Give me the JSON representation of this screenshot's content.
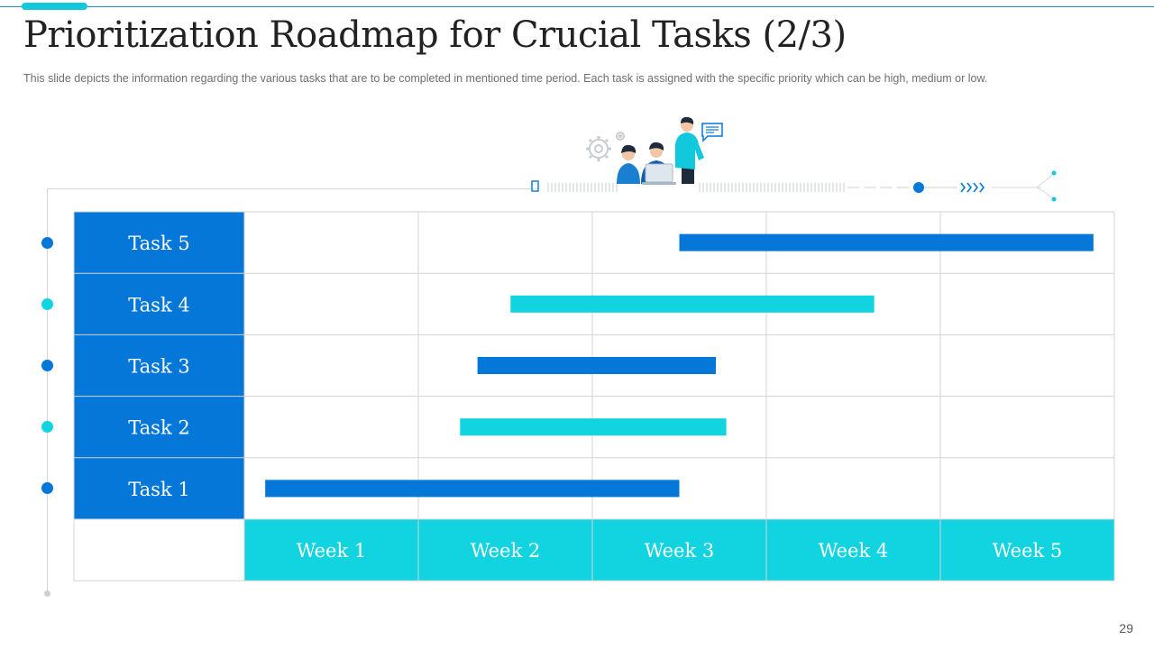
{
  "slide": {
    "title": "Prioritization Roadmap for Crucial Tasks (2/3)",
    "subtitle": "This slide depicts the information  regarding the various  tasks that are to be completed in mentioned time period. Each task is assigned with the specific priority which can be high,  medium or low.",
    "page_number": "29"
  },
  "colors": {
    "task_label_bg": "#0477d8",
    "week_label_bg": "#12d4e0",
    "bar_blue": "#0477d8",
    "bar_cyan": "#12d4e0",
    "grid": "#d3d3d3",
    "text_on_color": "#ffffff"
  },
  "illustration": {
    "icons": [
      "gear-icon",
      "person-icon",
      "laptop-icon",
      "chat-bubble-icon",
      "chevron-arrows-icon"
    ]
  },
  "chart_data": {
    "type": "bar",
    "orientation": "horizontal-gantt",
    "categories": [
      "Task 5",
      "Task 4",
      "Task 3",
      "Task 2",
      "Task 1"
    ],
    "x_categories": [
      "Week 1",
      "Week 2",
      "Week 3",
      "Week 4",
      "Week 5"
    ],
    "xlim": [
      0,
      5
    ],
    "grid": true,
    "series": [
      {
        "task": "Task 5",
        "start": 2.5,
        "end": 4.88,
        "color": "#0477d8"
      },
      {
        "task": "Task 4",
        "start": 1.53,
        "end": 3.62,
        "color": "#12d4e0"
      },
      {
        "task": "Task 3",
        "start": 1.34,
        "end": 2.71,
        "color": "#0477d8"
      },
      {
        "task": "Task 2",
        "start": 1.24,
        "end": 2.77,
        "color": "#12d4e0"
      },
      {
        "task": "Task 1",
        "start": 0.12,
        "end": 2.5,
        "color": "#0477d8"
      }
    ]
  }
}
